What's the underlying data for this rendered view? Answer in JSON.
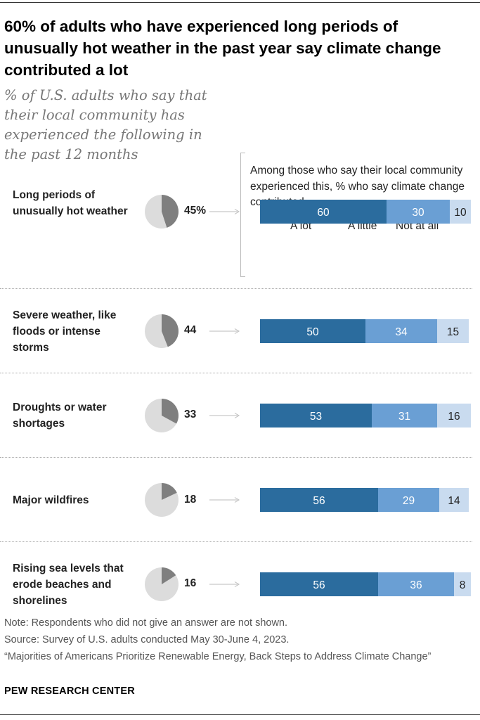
{
  "title": "60% of adults who have experienced long periods of unusually hot weather in the past year say climate change contributed a lot",
  "subtitle": "% of U.S. adults who say that their local community has experienced the following in the past 12 months",
  "callout": "Among those who say their local community experienced this, % who say climate change contributed …",
  "legend": [
    "A lot",
    "A little",
    "Not at all"
  ],
  "colors": {
    "a_lot": "#2b6c9e",
    "a_little": "#6a9fd4",
    "not_at_all": "#c9dbef",
    "pie_fill": "#7f7f7f",
    "pie_bg": "#dcdcdc"
  },
  "chart_data": {
    "type": "bar",
    "stacked": true,
    "categories": [
      "Long periods of unusually hot weather",
      "Severe weather, like floods or intense storms",
      "Droughts or water shortages",
      "Major wildfires",
      "Rising sea levels that erode beaches and shorelines"
    ],
    "experienced_pct": [
      45,
      44,
      33,
      18,
      16
    ],
    "experienced_labels": [
      "45%",
      "44",
      "33",
      "18",
      "16"
    ],
    "series": [
      {
        "name": "A lot",
        "values": [
          60,
          50,
          53,
          56,
          56
        ]
      },
      {
        "name": "A little",
        "values": [
          30,
          34,
          31,
          29,
          36
        ]
      },
      {
        "name": "Not at all",
        "values": [
          10,
          15,
          16,
          14,
          8
        ]
      }
    ],
    "xlim": [
      0,
      100
    ]
  },
  "notes": [
    "Note: Respondents who did not give an answer are not shown.",
    "Source: Survey of U.S. adults conducted May 30-June 4, 2023.",
    "“Majorities of Americans Prioritize Renewable Energy, Back Steps to Address Climate Change”"
  ],
  "brand": "PEW RESEARCH CENTER"
}
